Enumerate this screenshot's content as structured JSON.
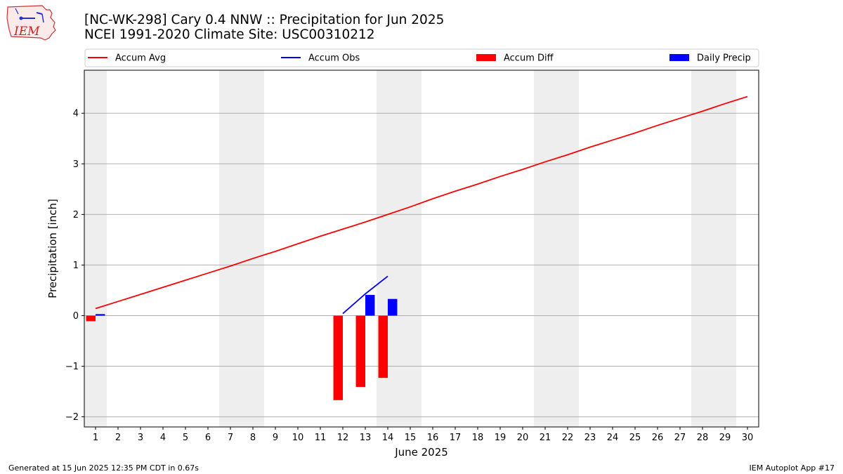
{
  "title_line1": "[NC-WK-298] Cary 0.4 NNW :: Precipitation for Jun 2025",
  "title_line2": "NCEI 1991-2020 Climate Site: USC00310212",
  "logo_text": "IEM",
  "footer_left": "Generated at 15 Jun 2025 12:35 PM CDT in 0.67s",
  "footer_right": "IEM Autoplot App #17",
  "colors": {
    "accum_avg": "#ff0000",
    "accum_obs": "#0000ff",
    "accum_diff": "#ff0000",
    "daily_precip": "#0000ff",
    "weekend_shade": "#eeeeee",
    "grid": "#b0b0b0"
  },
  "chart_data": {
    "type": "bar",
    "xlabel": "June 2025",
    "ylabel": "Precipitation [inch]",
    "xlim": [
      0.5,
      30.5
    ],
    "ylim": [
      -2.2,
      4.85
    ],
    "x_ticks": [
      1,
      2,
      3,
      4,
      5,
      6,
      7,
      8,
      9,
      10,
      11,
      12,
      13,
      14,
      15,
      16,
      17,
      18,
      19,
      20,
      21,
      22,
      23,
      24,
      25,
      26,
      27,
      28,
      29,
      30
    ],
    "y_ticks": [
      -2,
      -1,
      0,
      1,
      2,
      3,
      4
    ],
    "grid": "horizontal",
    "legend_placement": "top",
    "weekend_days": [
      1,
      7,
      8,
      14,
      15,
      21,
      22,
      28,
      29
    ],
    "legend": [
      "Accum Avg",
      "Accum Obs",
      "Accum Diff",
      "Daily Precip"
    ],
    "series": [
      {
        "name": "Accum Avg",
        "type": "line",
        "x": [
          1,
          2,
          3,
          4,
          5,
          6,
          7,
          8,
          9,
          10,
          11,
          12,
          13,
          14,
          15,
          16,
          17,
          18,
          19,
          20,
          21,
          22,
          23,
          24,
          25,
          26,
          27,
          28,
          29,
          30
        ],
        "values": [
          0.14,
          0.28,
          0.42,
          0.56,
          0.7,
          0.84,
          0.98,
          1.13,
          1.27,
          1.42,
          1.57,
          1.71,
          1.85,
          2.0,
          2.15,
          2.31,
          2.46,
          2.6,
          2.75,
          2.89,
          3.04,
          3.18,
          3.33,
          3.47,
          3.61,
          3.76,
          3.9,
          4.04,
          4.19,
          4.33
        ]
      },
      {
        "name": "Accum Obs",
        "type": "line",
        "x": [
          12,
          13,
          14
        ],
        "values": [
          0.04,
          0.43,
          0.78
        ]
      },
      {
        "name": "Accum Diff",
        "type": "bar",
        "x": [
          1,
          12,
          13,
          14
        ],
        "values": [
          -0.11,
          -1.67,
          -1.41,
          -1.23
        ]
      },
      {
        "name": "Daily Precip",
        "type": "bar",
        "x": [
          1,
          13,
          14
        ],
        "values": [
          0.03,
          0.41,
          0.33
        ]
      }
    ]
  }
}
